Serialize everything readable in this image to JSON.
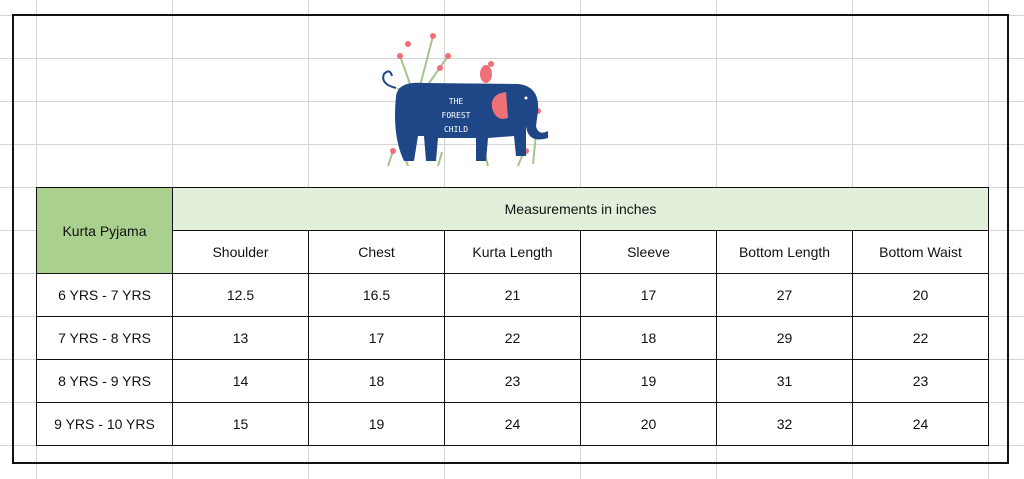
{
  "logo": {
    "text": [
      "THE",
      "FOREST",
      "CHILD"
    ],
    "colors": {
      "elephant": "#1f4788",
      "ear": "#f07078",
      "stem": "#a7c58b"
    }
  },
  "table": {
    "corner_label": "Kurta Pyjama",
    "group_header": "Measurements in inches",
    "columns": [
      "Shoulder",
      "Chest",
      "Kurta Length",
      "Sleeve",
      "Bottom Length",
      "Bottom Waist"
    ],
    "rows": [
      {
        "label": "6 YRS - 7 YRS",
        "values": [
          "12.5",
          "16.5",
          "21",
          "17",
          "27",
          "20"
        ]
      },
      {
        "label": "7 YRS - 8 YRS",
        "values": [
          "13",
          "17",
          "22",
          "18",
          "29",
          "22"
        ]
      },
      {
        "label": "8 YRS - 9 YRS",
        "values": [
          "14",
          "18",
          "23",
          "19",
          "31",
          "23"
        ]
      },
      {
        "label": "9  YRS - 10 YRS",
        "values": [
          "15",
          "19",
          "24",
          "20",
          "32",
          "24"
        ]
      }
    ],
    "colors": {
      "corner": "#a9d08e",
      "group_header": "#e2efda"
    }
  }
}
